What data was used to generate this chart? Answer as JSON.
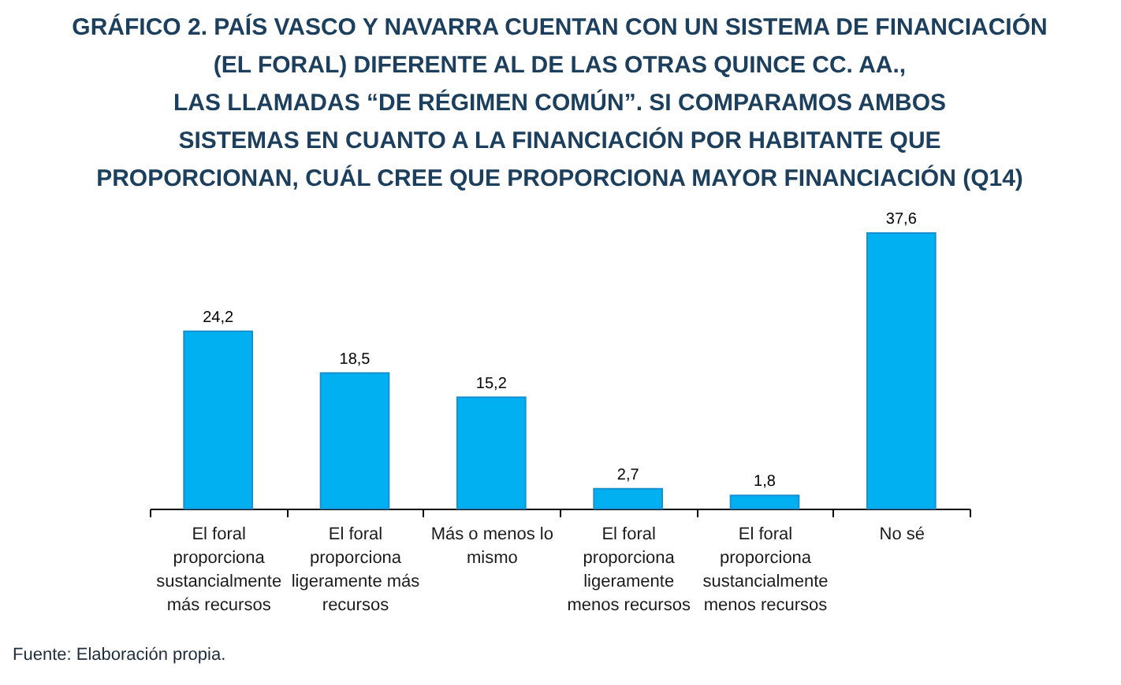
{
  "chart_data": {
    "type": "bar",
    "title": "GRÁFICO 2. PAÍS VASCO Y NAVARRA CUENTAN CON UN SISTEMA DE FINANCIACIÓN\n(EL FORAL) DIFERENTE AL DE LAS OTRAS QUINCE CC. AA.,\nLAS LLAMADAS “DE RÉGIMEN COMÚN”. SI COMPARAMOS AMBOS\nSISTEMAS EN CUANTO A LA FINANCIACIÓN POR HABITANTE QUE\nPROPORCIONAN, CUÁL CREE QUE PROPORCIONA MAYOR FINANCIACIÓN (Q14)",
    "categories": [
      "El foral proporciona sustancialmente más recursos",
      "El foral proporciona ligeramente más recursos",
      "Más o menos lo mismo",
      "El foral proporciona ligeramente menos recursos",
      "El foral proporciona sustancialmente menos recursos",
      "No sé"
    ],
    "values": [
      24.2,
      18.5,
      15.2,
      2.7,
      1.8,
      37.6
    ],
    "value_labels": [
      "24,2",
      "18,5",
      "15,2",
      "2,7",
      "1,8",
      "37,6"
    ],
    "color": "#00b0f0",
    "grid": false,
    "annotations": [
      "Fuente: Elaboración propia."
    ]
  }
}
